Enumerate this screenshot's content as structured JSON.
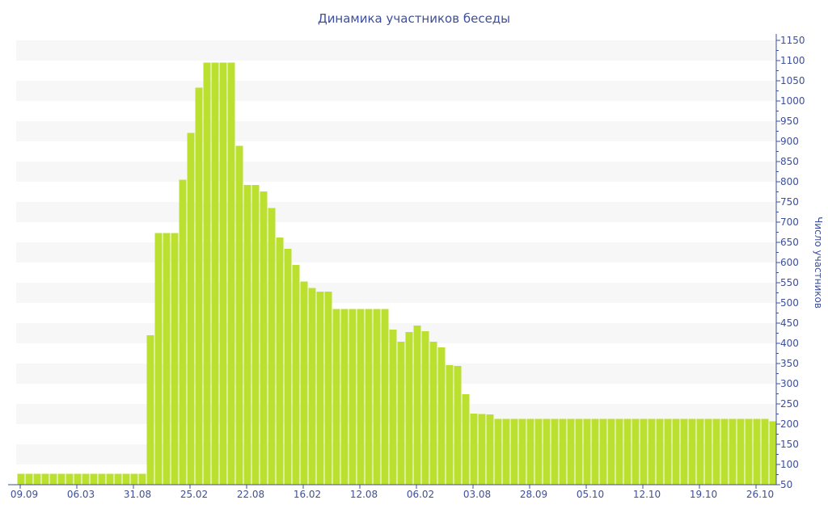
{
  "chart_data": {
    "type": "bar",
    "title": "Динамика участников беседы",
    "xlabel": "",
    "ylabel": "Число участников",
    "ylim": [
      50,
      1150
    ],
    "y_ticks": [
      50,
      100,
      150,
      200,
      250,
      300,
      350,
      400,
      450,
      500,
      550,
      600,
      650,
      700,
      750,
      800,
      850,
      900,
      950,
      1000,
      1050,
      1100,
      1150
    ],
    "y_axis_position": "right",
    "grid": "alternating horizontal bands",
    "legend": "none",
    "x_tick_labels": [
      {
        "label": "09.09",
        "bar": 1
      },
      {
        "label": "06.03",
        "bar": 8
      },
      {
        "label": "31.08",
        "bar": 15
      },
      {
        "label": "25.02",
        "bar": 22
      },
      {
        "label": "22.08",
        "bar": 29
      },
      {
        "label": "16.02",
        "bar": 36
      },
      {
        "label": "12.08",
        "bar": 43
      },
      {
        "label": "06.02",
        "bar": 50
      },
      {
        "label": "03.08",
        "bar": 57
      },
      {
        "label": "28.09",
        "bar": 64
      },
      {
        "label": "05.10",
        "bar": 71
      },
      {
        "label": "12.10",
        "bar": 78
      },
      {
        "label": "19.10",
        "bar": 85
      },
      {
        "label": "26.10",
        "bar": 92
      }
    ],
    "values": [
      77,
      77,
      77,
      77,
      77,
      77,
      77,
      77,
      77,
      77,
      77,
      77,
      77,
      77,
      77,
      77,
      420,
      673,
      673,
      673,
      805,
      921,
      1033,
      1095,
      1095,
      1095,
      1095,
      889,
      792,
      792,
      776,
      735,
      662,
      634,
      594,
      553,
      537,
      528,
      528,
      485,
      485,
      485,
      485,
      485,
      485,
      485,
      434,
      404,
      428,
      444,
      430,
      404,
      390,
      346,
      344,
      274,
      226,
      225,
      224,
      213,
      213,
      213,
      213,
      213,
      213,
      213,
      213,
      213,
      213,
      213,
      213,
      213,
      213,
      213,
      213,
      213,
      213,
      213,
      213,
      213,
      213,
      213,
      213,
      213,
      213,
      213,
      213,
      213,
      213,
      213,
      213,
      213,
      213,
      207
    ],
    "colors": {
      "bar": "#bce02f",
      "axis": "#3d4f9a",
      "band": "#f7f7f7"
    }
  }
}
